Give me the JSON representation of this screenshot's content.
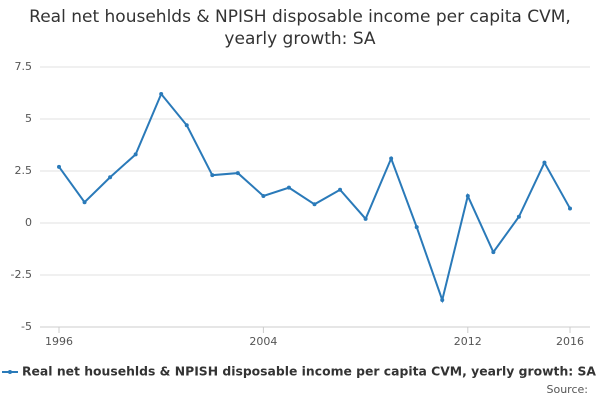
{
  "chart_data": {
    "type": "line",
    "title": "Real net househlds & NPISH disposable income per capita CVM, yearly growth: SA",
    "x": [
      1996,
      1997,
      1998,
      1999,
      2000,
      2001,
      2002,
      2003,
      2004,
      2005,
      2006,
      2007,
      2008,
      2009,
      2010,
      2011,
      2012,
      2013,
      2014,
      2015,
      2016
    ],
    "series": [
      {
        "name": "Real net househlds & NPISH disposable income per capita CVM, yearly growth: SA",
        "color": "#2a7ab9",
        "values": [
          2.7,
          1.0,
          2.2,
          3.3,
          6.2,
          4.7,
          2.3,
          2.4,
          1.3,
          1.7,
          0.9,
          1.6,
          0.2,
          3.1,
          -0.2,
          -3.7,
          1.3,
          -1.4,
          0.3,
          2.9,
          0.7
        ]
      }
    ],
    "xlim": [
      1996,
      2016
    ],
    "xticks": [
      1996,
      2004,
      2012,
      2016
    ],
    "ylim": [
      -5,
      7.5
    ],
    "yticks": [
      7.5,
      5,
      2.5,
      0,
      -2.5,
      -5
    ],
    "grid": true,
    "legend": "bottom",
    "source_label": "Source:"
  }
}
